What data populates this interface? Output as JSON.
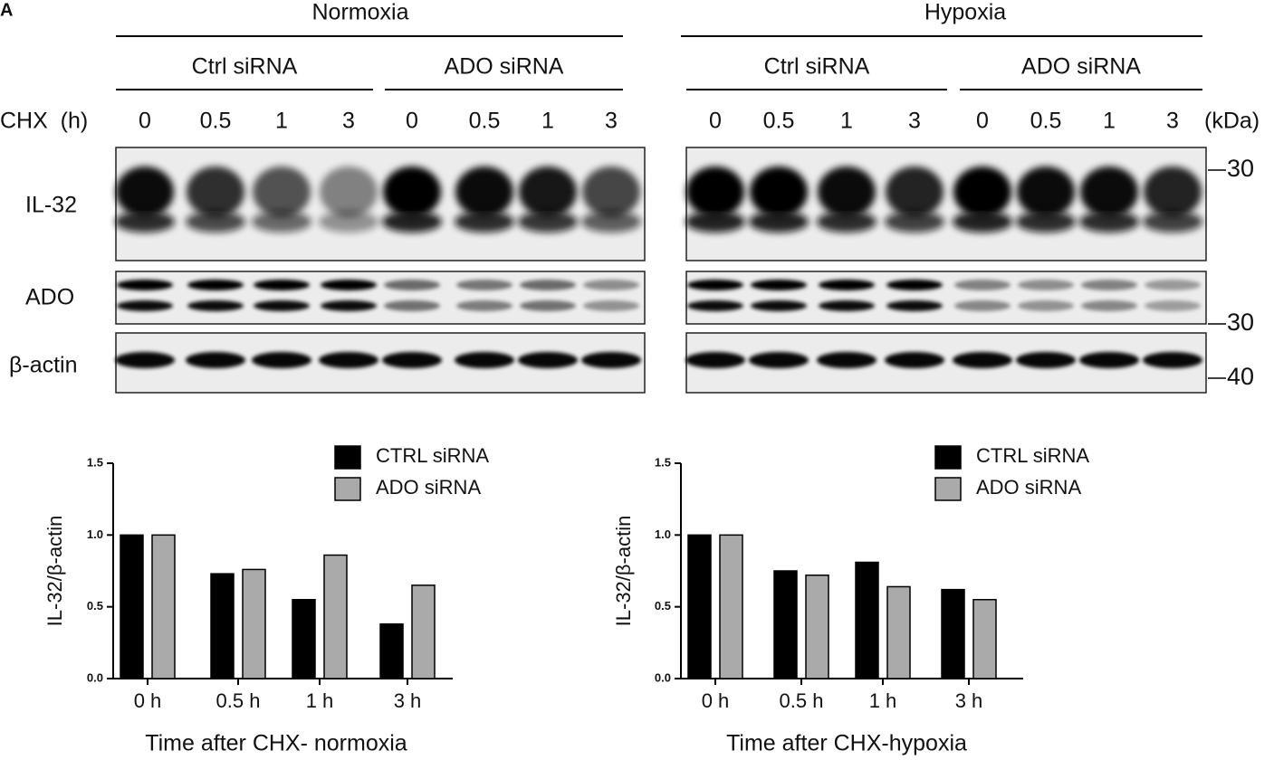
{
  "panel_label": "A",
  "blot": {
    "conditions": [
      {
        "label": "Normoxia",
        "groups": [
          "Ctrl siRNA",
          "ADO siRNA"
        ]
      },
      {
        "label": "Hypoxia",
        "groups": [
          "Ctrl siRNA",
          "ADO siRNA"
        ]
      }
    ],
    "time_label": "CHX  (h)",
    "times": [
      "0",
      "0.5",
      "1",
      "3"
    ],
    "kda_label": "(kDa)",
    "rows": [
      "IL-32",
      "ADO",
      "β-actin"
    ],
    "markers": [
      "30",
      "30",
      "40"
    ]
  },
  "chart_data": [
    {
      "type": "bar",
      "xlabel": "Time after CHX- normoxia",
      "ylabel": "IL-32/β-actin",
      "categories": [
        "0 h",
        "0.5 h",
        "1 h",
        "3 h"
      ],
      "series": [
        {
          "name": "CTRL siRNA",
          "color": "#000000",
          "values": [
            1.0,
            0.73,
            0.55,
            0.38
          ]
        },
        {
          "name": "ADO siRNA",
          "color": "#aaaaaa",
          "values": [
            1.0,
            0.76,
            0.86,
            0.65
          ]
        }
      ],
      "ylim": [
        0,
        1.5
      ],
      "yticks": [
        {
          "value": 0,
          "label": "0.0"
        },
        {
          "value": 0.5,
          "label": "0.5"
        },
        {
          "value": 1,
          "label": "1.0"
        },
        {
          "value": 1.5,
          "label": "1.5"
        }
      ]
    },
    {
      "type": "bar",
      "xlabel": "Time after CHX-hypoxia",
      "ylabel": "IL-32/β-actin",
      "categories": [
        "0 h",
        "0.5 h",
        "1 h",
        "3 h"
      ],
      "series": [
        {
          "name": "CTRL siRNA",
          "color": "#000000",
          "values": [
            1.0,
            0.75,
            0.81,
            0.62
          ]
        },
        {
          "name": "ADO siRNA",
          "color": "#aaaaaa",
          "values": [
            1.0,
            0.72,
            0.64,
            0.55
          ]
        }
      ],
      "ylim": [
        0,
        1.5
      ],
      "yticks": [
        {
          "value": 0,
          "label": "0.0"
        },
        {
          "value": 0.5,
          "label": "0.5"
        },
        {
          "value": 1,
          "label": "1.0"
        },
        {
          "value": 1.5,
          "label": "1.5"
        }
      ]
    }
  ]
}
